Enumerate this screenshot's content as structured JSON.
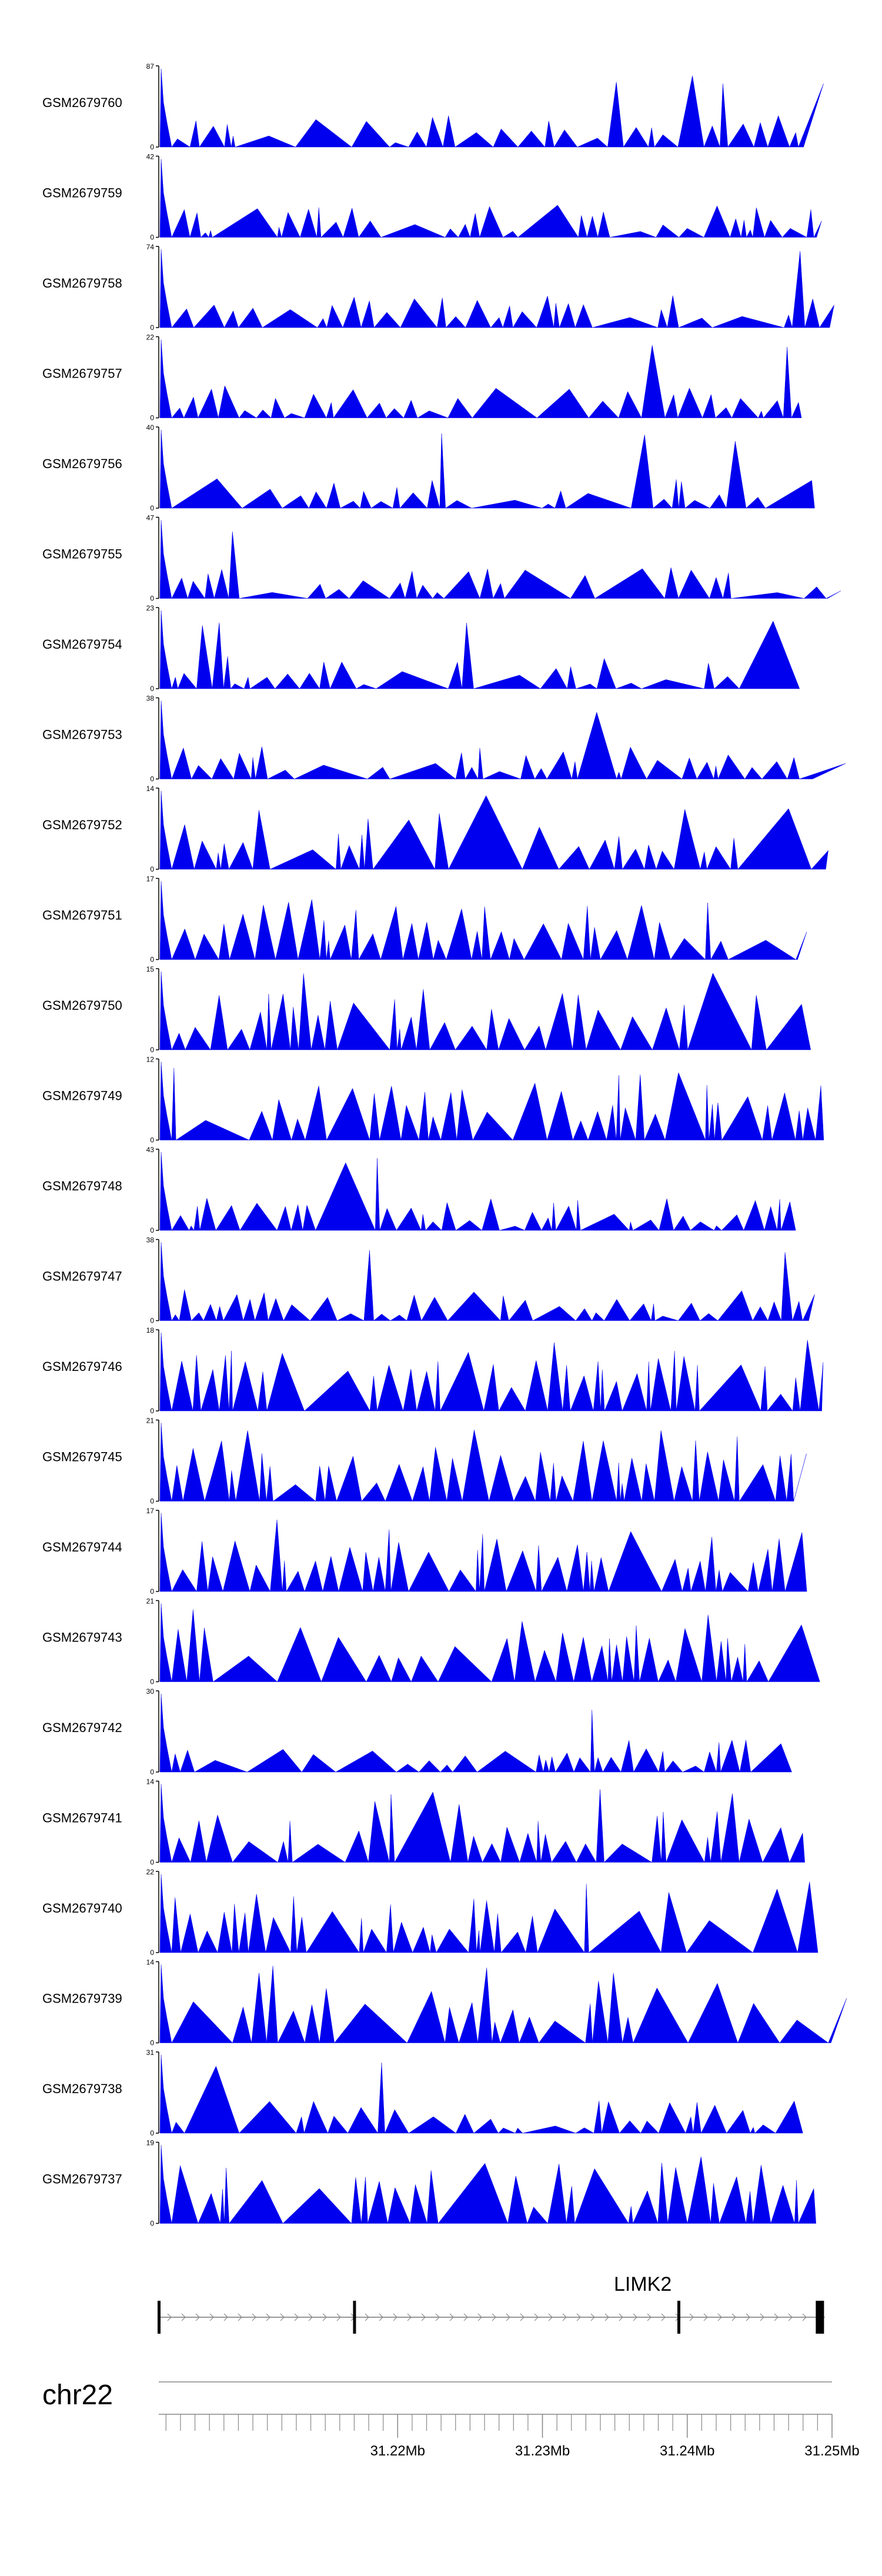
{
  "colors": {
    "track_fill": "#0000ee",
    "axis": "#000000",
    "ruler": "#888888",
    "gene": "#000000"
  },
  "chart_data": {
    "type": "area",
    "tracks": [
      {
        "name": "GSM2679760",
        "max": 87,
        "min": 0,
        "seed": 760,
        "peaks": 5
      },
      {
        "name": "GSM2679759",
        "max": 42,
        "min": 0,
        "seed": 759,
        "peaks": 7
      },
      {
        "name": "GSM2679758",
        "max": 74,
        "min": 0,
        "seed": 758,
        "peaks": 5
      },
      {
        "name": "GSM2679757",
        "max": 22,
        "min": 0,
        "seed": 757,
        "peaks": 9
      },
      {
        "name": "GSM2679756",
        "max": 40,
        "min": 0,
        "seed": 756,
        "peaks": 10
      },
      {
        "name": "GSM2679755",
        "max": 47,
        "min": 0,
        "seed": 755,
        "peaks": 9
      },
      {
        "name": "GSM2679754",
        "max": 23,
        "min": 0,
        "seed": 754,
        "peaks": 9
      },
      {
        "name": "GSM2679753",
        "max": 38,
        "min": 0,
        "seed": 753,
        "peaks": 10
      },
      {
        "name": "GSM2679752",
        "max": 14,
        "min": 0,
        "seed": 752,
        "peaks": 13
      },
      {
        "name": "GSM2679751",
        "max": 17,
        "min": 0,
        "seed": 751,
        "peaks": 13
      },
      {
        "name": "GSM2679750",
        "max": 15,
        "min": 0,
        "seed": 750,
        "peaks": 14
      },
      {
        "name": "GSM2679749",
        "max": 12,
        "min": 0,
        "seed": 749,
        "peaks": 15
      },
      {
        "name": "GSM2679748",
        "max": 43,
        "min": 0,
        "seed": 748,
        "peaks": 10
      },
      {
        "name": "GSM2679747",
        "max": 38,
        "min": 0,
        "seed": 747,
        "peaks": 10
      },
      {
        "name": "GSM2679746",
        "max": 18,
        "min": 0,
        "seed": 746,
        "peaks": 13
      },
      {
        "name": "GSM2679745",
        "max": 21,
        "min": 0,
        "seed": 745,
        "peaks": 13
      },
      {
        "name": "GSM2679744",
        "max": 17,
        "min": 0,
        "seed": 744,
        "peaks": 12
      },
      {
        "name": "GSM2679743",
        "max": 21,
        "min": 0,
        "seed": 743,
        "peaks": 12
      },
      {
        "name": "GSM2679742",
        "max": 30,
        "min": 0,
        "seed": 742,
        "peaks": 11
      },
      {
        "name": "GSM2679741",
        "max": 14,
        "min": 0,
        "seed": 741,
        "peaks": 14
      },
      {
        "name": "GSM2679740",
        "max": 22,
        "min": 0,
        "seed": 740,
        "peaks": 12
      },
      {
        "name": "GSM2679739",
        "max": 14,
        "min": 0,
        "seed": 739,
        "peaks": 14
      },
      {
        "name": "GSM2679738",
        "max": 31,
        "min": 0,
        "seed": 738,
        "peaks": 11
      },
      {
        "name": "GSM2679737",
        "max": 19,
        "min": 0,
        "seed": 737,
        "peaks": 12
      }
    ],
    "gene": {
      "name": "LIMK2",
      "start_mb": 31.2035,
      "end_mb": 31.2495,
      "exons_mb": [
        31.2035,
        31.217,
        31.2394,
        31.249
      ]
    },
    "ruler": {
      "chromosome": "chr22",
      "range_mb": [
        31.2035,
        31.25
      ],
      "tick_labels": [
        "31.22Mb",
        "31.23Mb",
        "31.24Mb",
        "31.25Mb"
      ],
      "tick_values_mb": [
        31.22,
        31.23,
        31.24,
        31.25
      ]
    },
    "xlabel": "",
    "ylabel": "",
    "legend": "none",
    "grid": false
  }
}
